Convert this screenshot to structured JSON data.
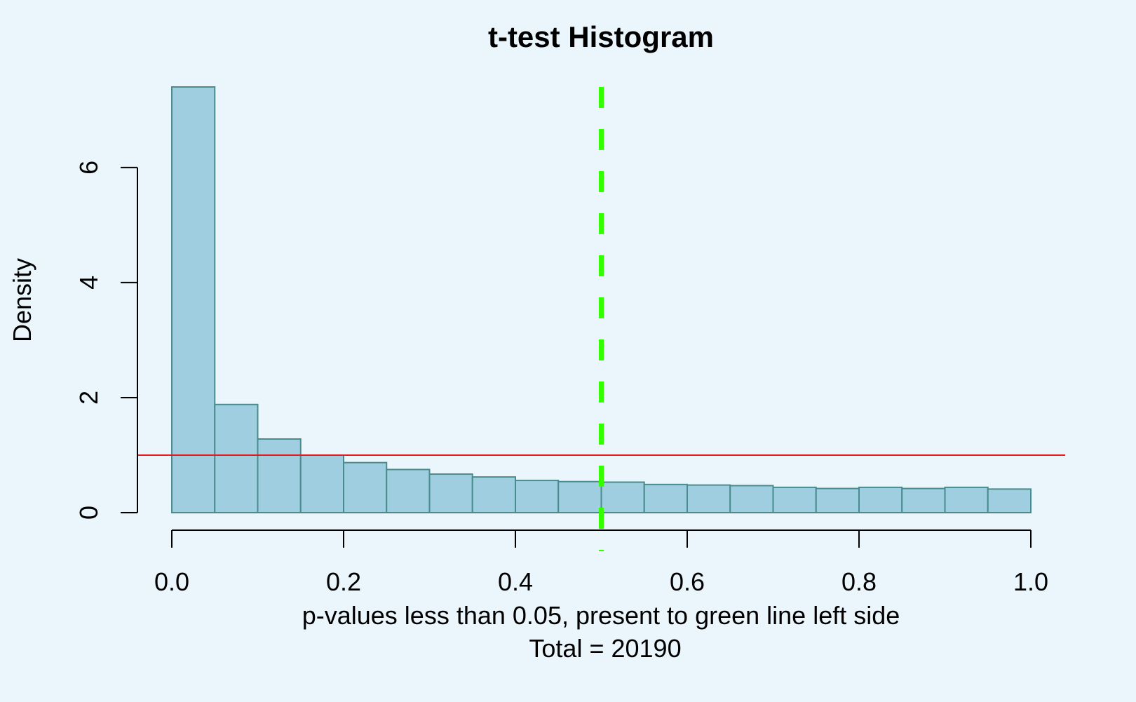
{
  "chart_data": {
    "type": "bar",
    "title": "t-test Histogram",
    "xlabel": "p-values less than 0.05, present to green line left side",
    "xlabel2": "Total = 20190",
    "ylabel": "Density",
    "bin_width": 0.05,
    "bins_start": [
      0.0,
      0.05,
      0.1,
      0.15,
      0.2,
      0.25,
      0.3,
      0.35,
      0.4,
      0.45,
      0.5,
      0.55,
      0.6,
      0.65,
      0.7,
      0.75,
      0.8,
      0.85,
      0.9,
      0.95
    ],
    "values": [
      7.4,
      1.88,
      1.28,
      1.0,
      0.87,
      0.75,
      0.67,
      0.62,
      0.56,
      0.54,
      0.53,
      0.49,
      0.48,
      0.47,
      0.44,
      0.42,
      0.44,
      0.42,
      0.44,
      0.41
    ],
    "xlim": [
      0.0,
      1.0
    ],
    "ylim": [
      0,
      7.4
    ],
    "xticks": [
      "0.0",
      "0.2",
      "0.4",
      "0.6",
      "0.8",
      "1.0"
    ],
    "xtick_values": [
      0.0,
      0.2,
      0.4,
      0.6,
      0.8,
      1.0
    ],
    "yticks": [
      "0",
      "2",
      "4",
      "6"
    ],
    "ytick_values": [
      0,
      2,
      4,
      6
    ],
    "reference_lines": [
      {
        "orientation": "horizontal",
        "value": 1.0,
        "color": "#E8191C",
        "style": "solid"
      },
      {
        "orientation": "vertical",
        "value": 0.5,
        "color": "#33FF00",
        "style": "dashed"
      }
    ],
    "grid": false,
    "colors": {
      "background": "#EBF5FC",
      "bar_fill": "#9FCEE0",
      "bar_edge": "#4A8C8C"
    }
  }
}
